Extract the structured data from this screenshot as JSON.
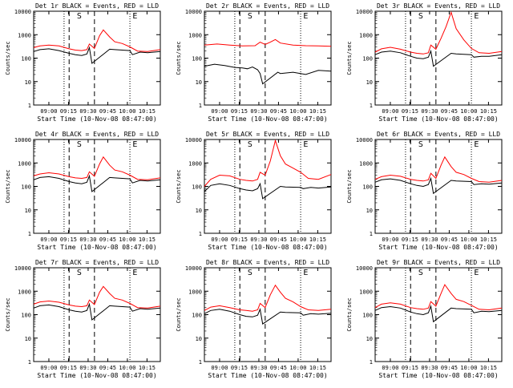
{
  "chart_data": [
    {
      "type": "line",
      "title": "Det 1r BLACK = Events, RED = LLD",
      "xlabel": "Start Time (10-Nov-08 08:47:00)",
      "ylabel": "Counts/sec",
      "x_ticks": [
        "09:00",
        "09:15",
        "09:30",
        "09:45",
        "10:00",
        "10:15"
      ],
      "y_ticks": [
        "1",
        "10",
        "100",
        "1000",
        "10000"
      ],
      "ylim": [
        1,
        10000
      ],
      "log_y": true,
      "markers": [
        "S",
        "E"
      ],
      "series": [
        {
          "name": "LLD",
          "color": "#ff0000",
          "x": [
            0,
            0.05,
            0.12,
            0.2,
            0.28,
            0.33,
            0.38,
            0.42,
            0.44,
            0.48,
            0.52,
            0.55,
            0.6,
            0.64,
            0.7,
            0.76,
            0.82,
            0.9,
            1.0
          ],
          "values": [
            280,
            330,
            360,
            330,
            250,
            220,
            210,
            230,
            400,
            260,
            900,
            1600,
            800,
            500,
            420,
            300,
            200,
            190,
            230
          ]
        },
        {
          "name": "Events",
          "color": "#000000",
          "x": [
            0,
            0.05,
            0.12,
            0.2,
            0.28,
            0.33,
            0.38,
            0.42,
            0.44,
            0.46,
            0.6,
            0.64,
            0.76,
            0.78,
            0.84,
            0.9,
            1.0
          ],
          "values": [
            190,
            230,
            250,
            210,
            160,
            140,
            130,
            150,
            280,
            60,
            240,
            230,
            210,
            140,
            180,
            170,
            190
          ]
        }
      ]
    },
    {
      "type": "line",
      "title": "Det 2r BLACK = Events, RED = LLD",
      "xlabel": "Start Time (10-Nov-08 08:47:00)",
      "ylabel": "Counts/sec",
      "x_ticks": [
        "09:00",
        "09:15",
        "09:30",
        "09:45",
        "10:00",
        "10:15"
      ],
      "y_ticks": [
        "1",
        "10",
        "100",
        "1000",
        "10000"
      ],
      "ylim": [
        1,
        10000
      ],
      "log_y": true,
      "markers": [
        "S",
        "E"
      ],
      "series": [
        {
          "name": "LLD",
          "color": "#ff0000",
          "x": [
            0,
            0.1,
            0.2,
            0.3,
            0.4,
            0.44,
            0.48,
            0.52,
            0.56,
            0.6,
            0.7,
            0.8,
            0.9,
            1.0
          ],
          "values": [
            360,
            400,
            360,
            330,
            340,
            480,
            380,
            480,
            620,
            440,
            360,
            340,
            330,
            320
          ]
        },
        {
          "name": "Events",
          "color": "#000000",
          "x": [
            0,
            0.08,
            0.16,
            0.24,
            0.3,
            0.34,
            0.38,
            0.42,
            0.44,
            0.46,
            0.58,
            0.6,
            0.7,
            0.8,
            0.9,
            1.0
          ],
          "values": [
            45,
            55,
            48,
            40,
            38,
            35,
            42,
            32,
            22,
            8,
            25,
            22,
            25,
            20,
            30,
            28
          ]
        }
      ]
    },
    {
      "type": "line",
      "title": "Det 3r BLACK = Events, RED = LLD",
      "xlabel": "Start Time (10-Nov-08 08:47:00)",
      "ylabel": "Counts/sec",
      "x_ticks": [
        "09:00",
        "09:15",
        "09:30",
        "09:45",
        "10:00",
        "10:15"
      ],
      "y_ticks": [
        "1",
        "10",
        "100",
        "1000",
        "10000"
      ],
      "ylim": [
        1,
        10000
      ],
      "log_y": true,
      "markers": [
        "S",
        "E"
      ],
      "series": [
        {
          "name": "LLD",
          "color": "#ff0000",
          "x": [
            0,
            0.05,
            0.12,
            0.2,
            0.28,
            0.33,
            0.38,
            0.42,
            0.44,
            0.48,
            0.52,
            0.56,
            0.6,
            0.64,
            0.7,
            0.76,
            0.82,
            0.9,
            1.0
          ],
          "values": [
            180,
            250,
            290,
            240,
            180,
            160,
            150,
            170,
            360,
            240,
            700,
            2200,
            9000,
            1800,
            600,
            260,
            170,
            160,
            190
          ]
        },
        {
          "name": "Events",
          "color": "#000000",
          "x": [
            0,
            0.05,
            0.12,
            0.2,
            0.28,
            0.33,
            0.38,
            0.42,
            0.44,
            0.46,
            0.6,
            0.64,
            0.76,
            0.78,
            0.84,
            0.9,
            1.0
          ],
          "values": [
            140,
            180,
            200,
            170,
            120,
            100,
            95,
            110,
            200,
            45,
            160,
            150,
            140,
            110,
            120,
            120,
            140
          ]
        }
      ]
    },
    {
      "type": "line",
      "title": "Det 4r BLACK = Events, RED = LLD",
      "xlabel": "Start Time (10-Nov-08 08:47:00)",
      "ylabel": "Counts/sec",
      "x_ticks": [
        "09:00",
        "09:15",
        "09:30",
        "09:45",
        "10:00",
        "10:15"
      ],
      "y_ticks": [
        "1",
        "10",
        "100",
        "1000",
        "10000"
      ],
      "ylim": [
        1,
        10000
      ],
      "log_y": true,
      "markers": [
        "S",
        "E"
      ],
      "series": [
        {
          "name": "LLD",
          "color": "#ff0000",
          "x": [
            0,
            0.05,
            0.12,
            0.2,
            0.28,
            0.33,
            0.38,
            0.42,
            0.44,
            0.48,
            0.52,
            0.55,
            0.6,
            0.64,
            0.7,
            0.76,
            0.82,
            0.9,
            1.0
          ],
          "values": [
            280,
            340,
            380,
            340,
            260,
            230,
            220,
            240,
            420,
            270,
            900,
            1800,
            800,
            500,
            420,
            300,
            200,
            190,
            230
          ]
        },
        {
          "name": "Events",
          "color": "#000000",
          "x": [
            0,
            0.05,
            0.12,
            0.2,
            0.28,
            0.33,
            0.38,
            0.42,
            0.44,
            0.46,
            0.6,
            0.64,
            0.76,
            0.78,
            0.84,
            0.9,
            1.0
          ],
          "values": [
            190,
            240,
            260,
            220,
            160,
            140,
            130,
            150,
            280,
            60,
            240,
            230,
            210,
            140,
            180,
            170,
            190
          ]
        }
      ]
    },
    {
      "type": "line",
      "title": "Det 5r BLACK = Events, RED = LLD",
      "xlabel": "Start Time (10-Nov-08 08:47:00)",
      "ylabel": "Counts/sec",
      "x_ticks": [
        "09:00",
        "09:15",
        "09:30",
        "09:45",
        "10:00",
        "10:15"
      ],
      "y_ticks": [
        "1",
        "10",
        "100",
        "1000",
        "10000"
      ],
      "ylim": [
        1,
        10000
      ],
      "log_y": true,
      "markers": [
        "S",
        "E"
      ],
      "series": [
        {
          "name": "LLD",
          "color": "#ff0000",
          "x": [
            0,
            0.05,
            0.12,
            0.2,
            0.28,
            0.33,
            0.38,
            0.42,
            0.44,
            0.48,
            0.52,
            0.56,
            0.6,
            0.64,
            0.7,
            0.76,
            0.82,
            0.9,
            1.0
          ],
          "values": [
            100,
            200,
            300,
            280,
            200,
            180,
            170,
            200,
            400,
            300,
            1200,
            9000,
            2000,
            900,
            600,
            400,
            220,
            200,
            320
          ]
        },
        {
          "name": "Events",
          "color": "#000000",
          "x": [
            0,
            0.05,
            0.12,
            0.2,
            0.28,
            0.33,
            0.38,
            0.42,
            0.44,
            0.46,
            0.6,
            0.64,
            0.76,
            0.78,
            0.84,
            0.9,
            1.0
          ],
          "values": [
            60,
            110,
            130,
            110,
            80,
            70,
            65,
            80,
            130,
            30,
            100,
            95,
            90,
            80,
            90,
            85,
            95
          ]
        }
      ]
    },
    {
      "type": "line",
      "title": "Det 6r BLACK = Events, RED = LLD",
      "xlabel": "Start Time (10-Nov-08 08:47:00)",
      "ylabel": "Counts/sec",
      "x_ticks": [
        "09:00",
        "09:15",
        "09:30",
        "09:45",
        "10:00",
        "10:15"
      ],
      "y_ticks": [
        "1",
        "10",
        "100",
        "1000",
        "10000"
      ],
      "ylim": [
        1,
        10000
      ],
      "log_y": true,
      "markers": [
        "S",
        "E"
      ],
      "series": [
        {
          "name": "LLD",
          "color": "#ff0000",
          "x": [
            0,
            0.05,
            0.12,
            0.2,
            0.28,
            0.33,
            0.38,
            0.42,
            0.44,
            0.48,
            0.52,
            0.55,
            0.6,
            0.64,
            0.7,
            0.76,
            0.82,
            0.9,
            1.0
          ],
          "values": [
            200,
            260,
            300,
            270,
            200,
            180,
            170,
            190,
            360,
            220,
            800,
            1800,
            700,
            400,
            320,
            220,
            160,
            150,
            180
          ]
        },
        {
          "name": "Events",
          "color": "#000000",
          "x": [
            0,
            0.05,
            0.12,
            0.2,
            0.28,
            0.33,
            0.38,
            0.42,
            0.44,
            0.46,
            0.6,
            0.64,
            0.76,
            0.78,
            0.84,
            0.9,
            1.0
          ],
          "values": [
            150,
            190,
            210,
            180,
            130,
            110,
            100,
            120,
            220,
            50,
            180,
            170,
            160,
            120,
            130,
            125,
            140
          ]
        }
      ]
    },
    {
      "type": "line",
      "title": "Det 7r BLACK = Events, RED = LLD",
      "xlabel": "Start Time (10-Nov-08 08:47:00)",
      "ylabel": "Counts/sec",
      "x_ticks": [
        "09:00",
        "09:15",
        "09:30",
        "09:45",
        "10:00",
        "10:15"
      ],
      "y_ticks": [
        "1",
        "10",
        "100",
        "1000",
        "10000"
      ],
      "ylim": [
        1,
        10000
      ],
      "log_y": true,
      "markers": [
        "S",
        "E"
      ],
      "series": [
        {
          "name": "LLD",
          "color": "#ff0000",
          "x": [
            0,
            0.05,
            0.12,
            0.2,
            0.28,
            0.33,
            0.38,
            0.42,
            0.44,
            0.48,
            0.52,
            0.55,
            0.6,
            0.64,
            0.7,
            0.76,
            0.82,
            0.9,
            1.0
          ],
          "values": [
            280,
            350,
            380,
            340,
            260,
            230,
            220,
            240,
            420,
            270,
            900,
            1600,
            800,
            500,
            420,
            300,
            200,
            190,
            230
          ]
        },
        {
          "name": "Events",
          "color": "#000000",
          "x": [
            0,
            0.05,
            0.12,
            0.2,
            0.28,
            0.33,
            0.38,
            0.42,
            0.44,
            0.46,
            0.6,
            0.64,
            0.76,
            0.78,
            0.84,
            0.9,
            1.0
          ],
          "values": [
            190,
            240,
            260,
            220,
            160,
            140,
            130,
            150,
            280,
            60,
            240,
            230,
            210,
            140,
            180,
            170,
            190
          ]
        }
      ]
    },
    {
      "type": "line",
      "title": "Det 8r BLACK = Events, RED = LLD",
      "xlabel": "Start Time (10-Nov-08 08:47:00)",
      "ylabel": "Counts/sec",
      "x_ticks": [
        "09:00",
        "09:15",
        "09:30",
        "09:45",
        "10:00",
        "10:15"
      ],
      "y_ticks": [
        "1",
        "10",
        "100",
        "1000",
        "10000"
      ],
      "ylim": [
        1,
        10000
      ],
      "log_y": true,
      "markers": [
        "S",
        "E"
      ],
      "series": [
        {
          "name": "LLD",
          "color": "#ff0000",
          "x": [
            0,
            0.05,
            0.12,
            0.2,
            0.28,
            0.33,
            0.38,
            0.42,
            0.44,
            0.48,
            0.52,
            0.56,
            0.6,
            0.64,
            0.7,
            0.76,
            0.82,
            0.9,
            1.0
          ],
          "values": [
            150,
            210,
            240,
            200,
            160,
            150,
            140,
            160,
            300,
            200,
            700,
            1800,
            900,
            500,
            350,
            220,
            160,
            150,
            170
          ]
        },
        {
          "name": "Events",
          "color": "#000000",
          "x": [
            0,
            0.05,
            0.12,
            0.2,
            0.28,
            0.33,
            0.38,
            0.42,
            0.44,
            0.46,
            0.6,
            0.64,
            0.76,
            0.78,
            0.84,
            0.9,
            1.0
          ],
          "values": [
            110,
            150,
            170,
            140,
            100,
            85,
            80,
            95,
            170,
            40,
            130,
            125,
            120,
            95,
            110,
            105,
            115
          ]
        }
      ]
    },
    {
      "type": "line",
      "title": "Det 9r BLACK = Events, RED = LLD",
      "xlabel": "Start Time (10-Nov-08 08:47:00)",
      "ylabel": "Counts/sec",
      "x_ticks": [
        "09:00",
        "09:15",
        "09:30",
        "09:45",
        "10:00",
        "10:15"
      ],
      "y_ticks": [
        "1",
        "10",
        "100",
        "1000",
        "10000"
      ],
      "ylim": [
        1,
        10000
      ],
      "log_y": true,
      "markers": [
        "S",
        "E"
      ],
      "series": [
        {
          "name": "LLD",
          "color": "#ff0000",
          "x": [
            0,
            0.05,
            0.12,
            0.2,
            0.28,
            0.33,
            0.38,
            0.42,
            0.44,
            0.48,
            0.52,
            0.55,
            0.6,
            0.64,
            0.7,
            0.76,
            0.82,
            0.9,
            1.0
          ],
          "values": [
            200,
            280,
            320,
            280,
            200,
            180,
            170,
            190,
            360,
            230,
            800,
            1900,
            800,
            450,
            360,
            250,
            170,
            160,
            190
          ]
        },
        {
          "name": "Events",
          "color": "#000000",
          "x": [
            0,
            0.05,
            0.12,
            0.2,
            0.28,
            0.33,
            0.38,
            0.42,
            0.44,
            0.46,
            0.6,
            0.64,
            0.76,
            0.78,
            0.84,
            0.9,
            1.0
          ],
          "values": [
            150,
            200,
            220,
            190,
            130,
            110,
            100,
            120,
            230,
            50,
            190,
            180,
            170,
            120,
            140,
            135,
            150
          ]
        }
      ]
    }
  ]
}
